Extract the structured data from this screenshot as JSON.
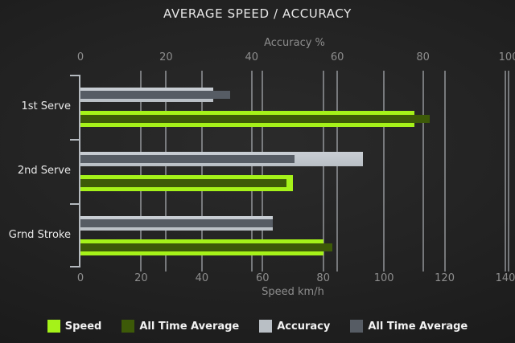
{
  "title": "AVERAGE SPEED / ACCURACY",
  "chart_data": {
    "type": "bar",
    "orientation": "horizontal",
    "title": "AVERAGE SPEED / ACCURACY",
    "categories": [
      "1st Serve",
      "2nd Serve",
      "Grnd Stroke"
    ],
    "axes": {
      "top": {
        "label": "Accuracy %",
        "min": 0,
        "max": 100,
        "ticks": [
          0,
          20,
          40,
          60,
          80,
          100
        ]
      },
      "bottom": {
        "label": "Speed km/h",
        "min": 0,
        "max": 140,
        "ticks": [
          0,
          20,
          40,
          60,
          80,
          100,
          120,
          140
        ]
      }
    },
    "series": [
      {
        "name": "Speed",
        "axis": "bottom",
        "role": "main",
        "color": "#a5f219",
        "values": [
          110,
          70,
          80
        ]
      },
      {
        "name": "All Time Average",
        "axis": "bottom",
        "role": "overlay",
        "color": "#3d5a08",
        "values": [
          115,
          68,
          83
        ]
      },
      {
        "name": "Accuracy",
        "axis": "top",
        "role": "main",
        "color": "#b9bfc5",
        "values": [
          31,
          66,
          45
        ]
      },
      {
        "name": "All Time Average",
        "axis": "top",
        "role": "overlay",
        "color": "#565c64",
        "values": [
          35,
          50,
          45
        ]
      }
    ],
    "legend": [
      {
        "label": "Speed",
        "color": "#a5f219"
      },
      {
        "label": "All Time Average",
        "color": "#3d5a08"
      },
      {
        "label": "Accuracy",
        "color": "#b9bfc5"
      },
      {
        "label": "All Time Average",
        "color": "#565c64"
      }
    ],
    "grid": true,
    "legend_position": "bottom"
  }
}
